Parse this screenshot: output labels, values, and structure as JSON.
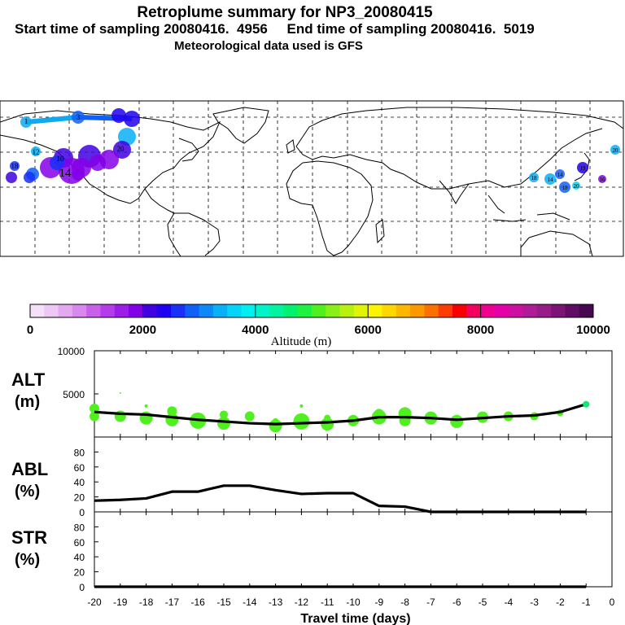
{
  "header": {
    "title": "Retroplume summary for NP3_20080415",
    "sampling_line": "Start time of sampling 20080416.  4956     End time of sampling 20080416.  5019",
    "met_line": "Meteorological data used is GFS"
  },
  "colorbar": {
    "label": "Altitude (m)",
    "ticks": [
      "0",
      "2000",
      "4000",
      "6000",
      "8000",
      "10000"
    ],
    "colors": [
      "#f6e0f8",
      "#eec8f4",
      "#e4a8f0",
      "#d888ee",
      "#c860ec",
      "#b43cea",
      "#9c1ce8",
      "#8400e8",
      "#4000e0",
      "#2000f0",
      "#1830f8",
      "#1060f8",
      "#0c88f8",
      "#08b0f8",
      "#04d4f8",
      "#00f0f0",
      "#00f4c8",
      "#00f4a0",
      "#00f070",
      "#20f040",
      "#50f020",
      "#88f018",
      "#b8f010",
      "#e0f408",
      "#fcf400",
      "#fcd800",
      "#fcb800",
      "#fc9800",
      "#fc7000",
      "#fc3c00",
      "#f80000",
      "#f40060",
      "#f00090",
      "#e400a8",
      "#cc10a0",
      "#b01c98",
      "#981c88",
      "#7c1478",
      "#600c64",
      "#480850"
    ]
  },
  "map": {
    "plumes": [
      {
        "label": "1",
        "color": "#10a8f0"
      },
      {
        "label": "3",
        "color": "#1060f8"
      },
      {
        "label": "10",
        "color": "#4000e0"
      },
      {
        "label": "12",
        "color": "#1830f8"
      },
      {
        "label": "14",
        "color": "#8400e8"
      },
      {
        "label": "18",
        "color": "#08b0f8"
      },
      {
        "label": "20",
        "color": "#2000f0"
      }
    ],
    "asia_labels": [
      "18",
      "14",
      "20",
      "18",
      "19",
      "14",
      "16",
      "20"
    ]
  },
  "panels": {
    "alt": {
      "name": "ALT",
      "unit": "(m)",
      "yticks": [
        "10000",
        "5000"
      ]
    },
    "abl": {
      "name": "ABL",
      "unit": "(%)",
      "yticks": [
        "80",
        "60",
        "40",
        "20",
        "0"
      ]
    },
    "str": {
      "name": "STR",
      "unit": "(%)",
      "yticks": [
        "80",
        "60",
        "40",
        "20",
        "0"
      ]
    },
    "xlabel": "Travel time (days)"
  },
  "chart_data": {
    "type": "line",
    "xlabel": "Travel time (days)",
    "x_ticks": [
      -20,
      -19,
      -18,
      -17,
      -16,
      -15,
      -14,
      -13,
      -12,
      -11,
      -10,
      -9,
      -8,
      -7,
      -6,
      -5,
      -4,
      -3,
      -2,
      -1,
      0
    ],
    "x_tick_labels": [
      "-20",
      "-19",
      "-18",
      "-17",
      "-16",
      "-15",
      "-14",
      "-13",
      "-12",
      "-11",
      "-10",
      "-9",
      "-8",
      "-7",
      "-6",
      "-5",
      "-4",
      "-3",
      "-2",
      "-1",
      "0"
    ],
    "xlim": [
      -20,
      0
    ],
    "series": [
      {
        "name": "ALT",
        "unit": "m",
        "ylim": [
          0,
          10000
        ],
        "x": [
          -20,
          -19,
          -18,
          -17,
          -16,
          -15,
          -14,
          -13,
          -12,
          -11,
          -10,
          -9,
          -8,
          -7,
          -6,
          -5,
          -4,
          -3,
          -2,
          -1
        ],
        "values": [
          2900,
          2700,
          2600,
          2300,
          2000,
          1800,
          1600,
          1500,
          1600,
          1700,
          1900,
          2300,
          2300,
          2200,
          2000,
          2200,
          2400,
          2500,
          2900,
          3800
        ]
      },
      {
        "name": "ABL",
        "unit": "%",
        "ylim": [
          0,
          100
        ],
        "x": [
          -20,
          -19,
          -18,
          -17,
          -16,
          -15,
          -14,
          -13,
          -12,
          -11,
          -10,
          -9,
          -8,
          -7,
          -6,
          -5,
          -4,
          -3,
          -2,
          -1
        ],
        "values": [
          15,
          16,
          18,
          27,
          27,
          35,
          35,
          29,
          24,
          25,
          25,
          8,
          7,
          0,
          0,
          0,
          0,
          0,
          0,
          0
        ]
      },
      {
        "name": "STR",
        "unit": "%",
        "ylim": [
          0,
          100
        ],
        "x": [
          -20,
          -19,
          -18,
          -17,
          -16,
          -15,
          -14,
          -13,
          -12,
          -11,
          -10,
          -9,
          -8,
          -7,
          -6,
          -5,
          -4,
          -3,
          -2,
          -1
        ],
        "values": [
          0,
          0,
          0,
          0,
          0,
          0,
          0,
          0,
          0,
          0,
          0,
          0,
          0,
          0,
          0,
          0,
          0,
          0,
          0,
          0
        ]
      }
    ],
    "alt_scatter": {
      "x": [
        -20,
        -20,
        -19,
        -19,
        -18,
        -18,
        -17,
        -17,
        -16,
        -15,
        -15,
        -14,
        -13,
        -13,
        -12,
        -12,
        -11,
        -11,
        -10,
        -9,
        -9,
        -8,
        -8,
        -7,
        -6,
        -5,
        -4,
        -3,
        -2,
        -1
      ],
      "alt": [
        3300,
        2400,
        5100,
        2400,
        3600,
        2200,
        3000,
        2000,
        1900,
        2600,
        1600,
        2400,
        1300,
        1800,
        3600,
        1800,
        1500,
        2200,
        1900,
        2300,
        2700,
        1900,
        2700,
        2200,
        1800,
        2300,
        2400,
        2400,
        2800,
        3800
      ],
      "size": [
        6,
        6,
        1,
        7,
        2,
        8,
        6,
        8,
        10,
        5,
        8,
        6,
        8,
        4,
        2,
        10,
        8,
        4,
        7,
        9,
        6,
        7,
        8,
        8,
        8,
        7,
        6,
        5,
        4,
        4
      ]
    }
  }
}
